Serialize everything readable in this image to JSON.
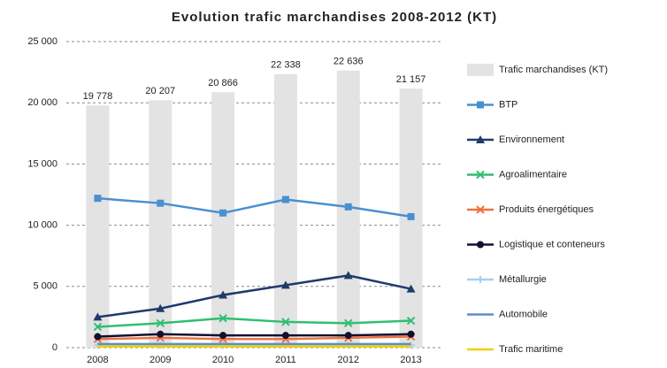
{
  "chart_data": {
    "type": "combo",
    "title": "Evolution trafic marchandises 2008-2012 (KT)",
    "categories": [
      "2008",
      "2009",
      "2010",
      "2011",
      "2012",
      "2013"
    ],
    "ylim": [
      0,
      25000
    ],
    "yticks": [
      0,
      {
        "value": 5000,
        "label": "5 000"
      },
      {
        "value": 10000,
        "label": "10 000"
      },
      {
        "value": 15000,
        "label": "15 000"
      },
      {
        "value": 20000,
        "label": "20 000"
      },
      {
        "value": 25000,
        "label": "25 000"
      }
    ],
    "grid": true,
    "legend": "right",
    "series": [
      {
        "name": "Trafic marchandises (KT)",
        "type": "bar",
        "color": "#e3e3e3",
        "values": [
          19778,
          20207,
          20866,
          22338,
          22636,
          21157
        ],
        "value_labels": [
          "19 778",
          "20 207",
          "20 866",
          "22 338",
          "22 636",
          "21 157"
        ]
      },
      {
        "name": "BTP",
        "type": "line",
        "marker": "square",
        "color": "#4a8fd1",
        "values": [
          12200,
          11800,
          11000,
          12100,
          11500,
          10700
        ]
      },
      {
        "name": "Environnement",
        "type": "line",
        "marker": "triangle",
        "color": "#1f3a6b",
        "values": [
          2500,
          3200,
          4300,
          5100,
          5900,
          4800
        ]
      },
      {
        "name": "Agroalimentaire",
        "type": "line",
        "marker": "x",
        "color": "#2fbf71",
        "values": [
          1700,
          2000,
          2400,
          2100,
          2000,
          2200
        ]
      },
      {
        "name": "Produits énergétiques",
        "type": "line",
        "marker": "x",
        "color": "#f07040",
        "values": [
          700,
          800,
          700,
          700,
          800,
          900
        ]
      },
      {
        "name": "Logistique et conteneurs",
        "type": "line",
        "marker": "circle",
        "color": "#101030",
        "values": [
          900,
          1100,
          1000,
          1000,
          1000,
          1100
        ]
      },
      {
        "name": "Métallurgie",
        "type": "line",
        "marker": "plus",
        "color": "#a8d0f0",
        "values": [
          200,
          200,
          200,
          200,
          200,
          200
        ]
      },
      {
        "name": "Automobile",
        "type": "line",
        "marker": "none",
        "color": "#5b8fc8",
        "values": [
          300,
          300,
          300,
          300,
          300,
          300
        ]
      },
      {
        "name": "Trafic maritime",
        "type": "line",
        "marker": "none",
        "color": "#f0d000",
        "values": [
          100,
          100,
          100,
          100,
          100,
          100
        ]
      }
    ]
  }
}
